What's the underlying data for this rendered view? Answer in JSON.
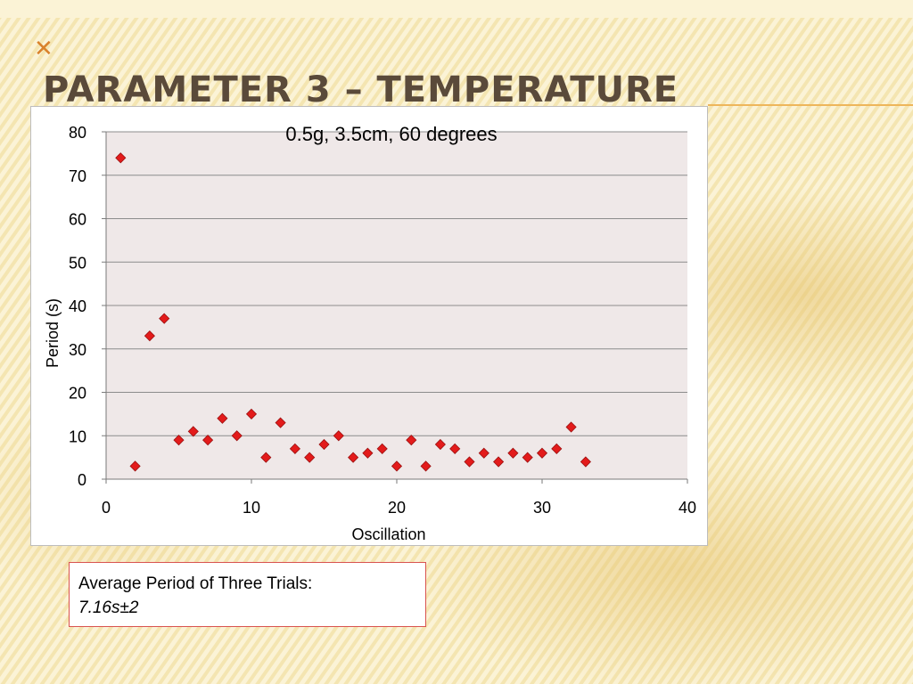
{
  "slide": {
    "logo_glyph": "✕",
    "title": "PARAMETER 3 – TEMPERATURE"
  },
  "note": {
    "label": "Average Period of Three Trials:",
    "value": "7.16s±2"
  },
  "colors": {
    "marker": "#e31b1b",
    "marker_edge": "#9a1010",
    "plot_background": "#efe8e8",
    "gridline": "#8c8c8c",
    "title_text": "#5a4a3a",
    "note_border": "#d9534f",
    "background": "#fbf3d6"
  },
  "chart_data": {
    "type": "scatter",
    "title": "0.5g, 3.5cm, 60 degrees",
    "xlabel": "Oscillation",
    "ylabel": "Period (s)",
    "xlim": [
      0,
      40
    ],
    "ylim": [
      0,
      80
    ],
    "xticks": [
      0,
      10,
      20,
      30,
      40
    ],
    "yticks": [
      0,
      10,
      20,
      30,
      40,
      50,
      60,
      70,
      80
    ],
    "grid": "horizontal",
    "legend": "none",
    "marker": "diamond",
    "points": [
      [
        1,
        74
      ],
      [
        2,
        3
      ],
      [
        3,
        33
      ],
      [
        4,
        37
      ],
      [
        5,
        9
      ],
      [
        6,
        11
      ],
      [
        7,
        9
      ],
      [
        8,
        14
      ],
      [
        9,
        10
      ],
      [
        10,
        15
      ],
      [
        11,
        5
      ],
      [
        12,
        13
      ],
      [
        13,
        7
      ],
      [
        14,
        5
      ],
      [
        15,
        8
      ],
      [
        16,
        10
      ],
      [
        17,
        5
      ],
      [
        18,
        6
      ],
      [
        19,
        7
      ],
      [
        20,
        3
      ],
      [
        21,
        9
      ],
      [
        22,
        3
      ],
      [
        23,
        8
      ],
      [
        24,
        7
      ],
      [
        25,
        4
      ],
      [
        26,
        6
      ],
      [
        27,
        4
      ],
      [
        28,
        6
      ],
      [
        29,
        5
      ],
      [
        30,
        6
      ],
      [
        31,
        7
      ],
      [
        32,
        12
      ],
      [
        33,
        4
      ]
    ]
  }
}
